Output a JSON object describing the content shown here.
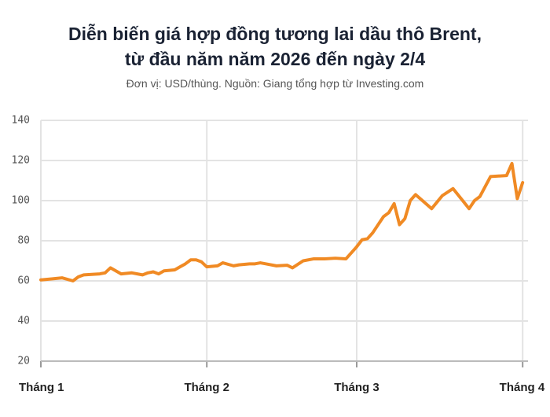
{
  "chart_data": {
    "type": "line",
    "title": [
      "Diễn biến giá hợp đồng tương lai dầu thô Brent,",
      "từ đầu năm năm 2026 đến ngày 2/4"
    ],
    "subtitle": "Đơn vị: USD/thùng. Nguồn: Giang tổng hợp từ Investing.com",
    "x": [
      0,
      2,
      4,
      6,
      7,
      8,
      11,
      12,
      13,
      15,
      17,
      19,
      20,
      21,
      22,
      23,
      25,
      26,
      27,
      28,
      29,
      30,
      31,
      33,
      34,
      36,
      37,
      39,
      40,
      41,
      42,
      44,
      46,
      47,
      49,
      51,
      53,
      55,
      57,
      59,
      60,
      61,
      62,
      64,
      65,
      66,
      67,
      68,
      69,
      70,
      73,
      75,
      77,
      80,
      81,
      82,
      84,
      87,
      88,
      89,
      90
    ],
    "series": [
      {
        "name": "Brent",
        "color": "#f08a24",
        "values": [
          60.5,
          61,
          61.5,
          60,
          62,
          63,
          63.5,
          64,
          66.5,
          63.5,
          64,
          63,
          64,
          64.5,
          63.5,
          65,
          65.5,
          67,
          68.5,
          70.5,
          70.5,
          69.5,
          67,
          67.5,
          69,
          67.5,
          68,
          68.5,
          68.5,
          69,
          68.5,
          67.5,
          67.8,
          66.5,
          70,
          71,
          71,
          71.3,
          71,
          77,
          80.5,
          81,
          84,
          92,
          94,
          98.5,
          88,
          91,
          100,
          103,
          96,
          102.5,
          106,
          96,
          100,
          102,
          112,
          112.5,
          118.5,
          101,
          109
        ]
      }
    ],
    "xlim": [
      0,
      91
    ],
    "xticks": [
      {
        "value": 0,
        "label": "Tháng 1"
      },
      {
        "value": 31,
        "label": "Tháng 2"
      },
      {
        "value": 59,
        "label": "Tháng 3"
      },
      {
        "value": 90,
        "label": "Tháng 4"
      }
    ],
    "ylim": [
      20,
      140
    ],
    "yticks": [
      20,
      40,
      60,
      80,
      100,
      120,
      140
    ],
    "grid": true
  }
}
